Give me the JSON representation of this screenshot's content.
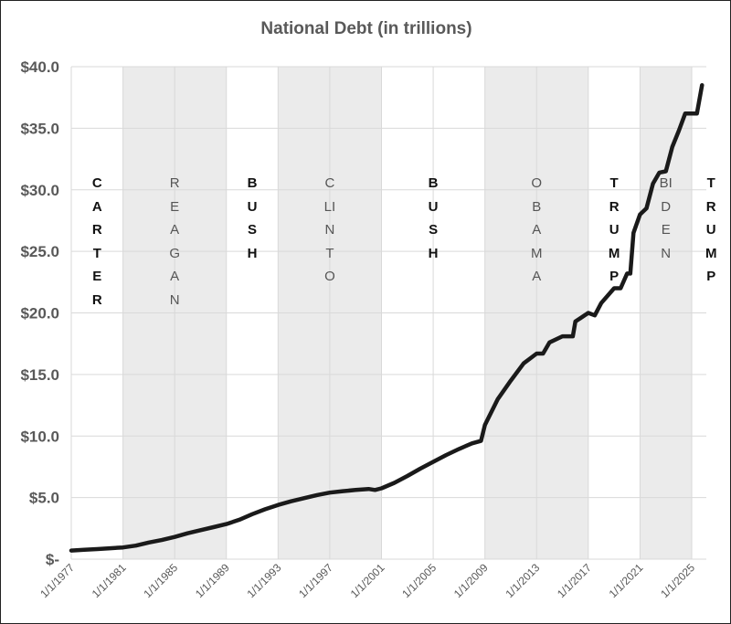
{
  "chart_data": {
    "type": "line",
    "title": "National Debt (in trillions)",
    "xlabel": "",
    "ylabel": "",
    "ylim": [
      0,
      40
    ],
    "xlim": [
      1977,
      2025.8
    ],
    "grid": true,
    "y_ticks": [
      {
        "value": 0,
        "label": "$-"
      },
      {
        "value": 5,
        "label": "$5.0"
      },
      {
        "value": 10,
        "label": "$10.0"
      },
      {
        "value": 15,
        "label": "$15.0"
      },
      {
        "value": 20,
        "label": "$20.0"
      },
      {
        "value": 25,
        "label": "$25.0"
      },
      {
        "value": 30,
        "label": "$30.0"
      },
      {
        "value": 35,
        "label": "$35.0"
      },
      {
        "value": 40,
        "label": "$40.0"
      }
    ],
    "x_ticks": [
      {
        "value": 1977,
        "label": "1/1/1977"
      },
      {
        "value": 1981,
        "label": "1/1/1981"
      },
      {
        "value": 1985,
        "label": "1/1/1985"
      },
      {
        "value": 1989,
        "label": "1/1/1989"
      },
      {
        "value": 1993,
        "label": "1/1/1993"
      },
      {
        "value": 1997,
        "label": "1/1/1997"
      },
      {
        "value": 2001,
        "label": "1/1/2001"
      },
      {
        "value": 2005,
        "label": "1/1/2005"
      },
      {
        "value": 2009,
        "label": "1/1/2009"
      },
      {
        "value": 2013,
        "label": "1/1/2013"
      },
      {
        "value": 2017,
        "label": "1/1/2017"
      },
      {
        "value": 2021,
        "label": "1/1/2021"
      },
      {
        "value": 2025,
        "label": "1/1/2025"
      }
    ],
    "shaded_periods": [
      {
        "start": 1981,
        "end": 1989
      },
      {
        "start": 1993,
        "end": 2001
      },
      {
        "start": 2009,
        "end": 2017
      },
      {
        "start": 2021,
        "end": 2025
      }
    ],
    "period_labels": [
      {
        "text": "CARTER",
        "year": 1979,
        "style": "bold"
      },
      {
        "text": "REAGAN",
        "year": 1985,
        "style": "light"
      },
      {
        "text": "BUSH",
        "year": 1991,
        "style": "bold"
      },
      {
        "text": "CLINTO",
        "year": 1997,
        "style": "light"
      },
      {
        "text": "BUSH",
        "year": 2005,
        "style": "bold"
      },
      {
        "text": "OBAMA",
        "year": 2013,
        "style": "light"
      },
      {
        "text": "TRUMP",
        "year": 2019,
        "style": "bold"
      },
      {
        "text": "BIDEN",
        "year": 2023,
        "style": "light"
      },
      {
        "text": "TRUMP",
        "year": 2026.5,
        "style": "bold"
      }
    ],
    "series": [
      {
        "name": "National Debt",
        "x": [
          1977,
          1978,
          1979,
          1980,
          1981,
          1982,
          1983,
          1984,
          1985,
          1986,
          1987,
          1988,
          1989,
          1990,
          1991,
          1992,
          1993,
          1994,
          1995,
          1996,
          1997,
          1998,
          1999,
          2000,
          2000.5,
          2001,
          2002,
          2003,
          2004,
          2005,
          2006,
          2007,
          2008,
          2008.7,
          2009,
          2010,
          2011,
          2012,
          2013,
          2013.5,
          2014,
          2015,
          2015.8,
          2016,
          2017,
          2017.5,
          2018,
          2019,
          2019.5,
          2020,
          2020.25,
          2020.5,
          2021,
          2021.5,
          2022,
          2022.5,
          2023,
          2023.5,
          2024,
          2024.5,
          2025,
          2025.4,
          2025.8
        ],
        "values": [
          0.7,
          0.76,
          0.82,
          0.88,
          0.95,
          1.1,
          1.35,
          1.55,
          1.8,
          2.1,
          2.35,
          2.6,
          2.85,
          3.2,
          3.65,
          4.05,
          4.4,
          4.7,
          4.95,
          5.2,
          5.4,
          5.52,
          5.62,
          5.7,
          5.62,
          5.75,
          6.2,
          6.75,
          7.35,
          7.9,
          8.45,
          8.95,
          9.4,
          9.6,
          10.9,
          13.0,
          14.5,
          15.9,
          16.7,
          16.7,
          17.6,
          18.1,
          18.1,
          19.3,
          20.0,
          19.8,
          20.8,
          22.0,
          22.0,
          23.2,
          23.2,
          26.5,
          28.0,
          28.5,
          30.5,
          31.4,
          31.5,
          33.5,
          34.8,
          36.2,
          36.2,
          36.2,
          38.5
        ]
      }
    ]
  }
}
